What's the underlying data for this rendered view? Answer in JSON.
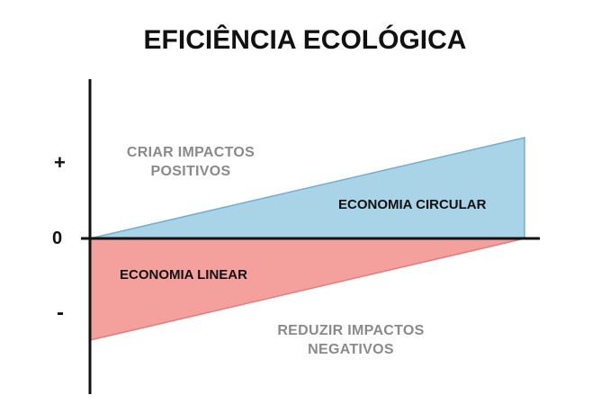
{
  "title": "EFICIÊNCIA ECOLÓGICA",
  "axis": {
    "plus": "+",
    "zero": "0",
    "minus": "-"
  },
  "labels": {
    "positive_line1": "CRIAR IMPACTOS",
    "positive_line2": "POSITIVOS",
    "negative_line1": "REDUZIR IMPACTOS",
    "negative_line2": "NEGATIVOS",
    "circular": "ECONOMIA CIRCULAR",
    "linear": "ECONOMIA LINEAR"
  },
  "colors": {
    "circular_fill": "#a9d3e6",
    "circular_stroke": "#6fb0d0",
    "linear_fill": "#f4a19e",
    "linear_stroke": "#e47c78",
    "axis": "#111111"
  }
}
